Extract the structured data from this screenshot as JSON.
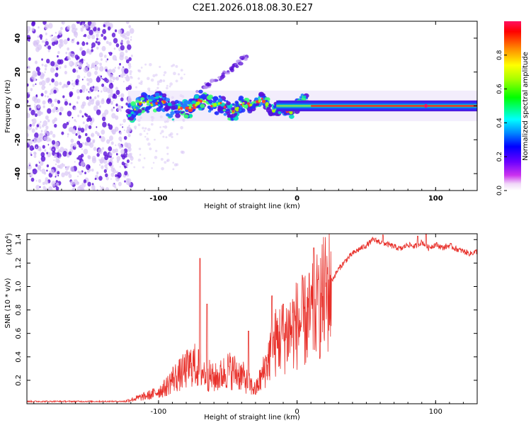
{
  "title": "C2E1.2026.018.08.30.E27",
  "colors": {
    "snr_line": "#e8302a",
    "spectrogram_dark": "#5a0fd8",
    "spectrogram_light": "#d9c6f5",
    "axis": "#000000"
  },
  "chart_data": [
    {
      "type": "heatmap",
      "name": "spectrogram",
      "xlabel": "Height of straight line (km)",
      "ylabel": "Frequency (Hz)",
      "xlim": [
        -195,
        130
      ],
      "ylim": [
        -50,
        50
      ],
      "xticks": [
        -100,
        0,
        100
      ],
      "yticks": [
        -40,
        -20,
        0,
        20,
        40
      ],
      "colorbar": {
        "label": "Normalized spectral amplitude",
        "range": [
          0,
          1
        ],
        "ticks": [
          "0.0",
          "0.2",
          "0.4",
          "0.6",
          "0.8"
        ],
        "tick_values": [
          0,
          0.2,
          0.4,
          0.6,
          0.8
        ]
      },
      "features": {
        "noise_region_x": [
          -195,
          -122
        ],
        "signal_band_center_hz": 0,
        "signal_band_halfwidth_hz": 2,
        "harmonic_branch": [
          [
            -75,
            8
          ],
          [
            -55,
            17
          ],
          [
            -35,
            30
          ]
        ],
        "wobble_region_x": [
          -122,
          -20
        ],
        "strong_band_x": [
          10,
          130
        ]
      }
    },
    {
      "type": "line",
      "name": "snr",
      "xlabel": "Height of straight line (km)",
      "ylabel": "SNR (10 * v/v)",
      "scale_label": "(x10",
      "scale_exponent": "4",
      "scale_suffix": ")",
      "xlim": [
        -195,
        130
      ],
      "ylim": [
        0,
        1.45
      ],
      "xticks": [
        -100,
        0,
        100
      ],
      "yticks": [
        0.2,
        0.4,
        0.6,
        0.8,
        1.0,
        1.2,
        1.4
      ],
      "ytick_labels": [
        "0.2",
        "0.4",
        "0.6",
        "0.8",
        "1.0",
        "1.2",
        "1.4"
      ],
      "envelope": {
        "x": [
          -195,
          -150,
          -125,
          -115,
          -105,
          -95,
          -90,
          -85,
          -80,
          -75,
          -70,
          -65,
          -60,
          -55,
          -50,
          -45,
          -40,
          -35,
          -30,
          -25,
          -20,
          -15,
          -10,
          -5,
          0,
          5,
          10,
          15,
          20,
          25,
          30,
          35,
          40,
          45,
          50,
          55,
          60,
          65,
          70,
          75,
          80,
          85,
          90,
          95,
          100,
          105,
          110,
          115,
          120,
          125,
          130
        ],
        "y": [
          0.02,
          0.02,
          0.02,
          0.05,
          0.08,
          0.14,
          0.22,
          0.25,
          0.3,
          0.35,
          0.3,
          0.26,
          0.22,
          0.25,
          0.3,
          0.28,
          0.25,
          0.18,
          0.12,
          0.25,
          0.42,
          0.55,
          0.6,
          0.65,
          0.7,
          0.72,
          0.76,
          0.85,
          0.95,
          1.05,
          1.15,
          1.22,
          1.28,
          1.32,
          1.35,
          1.4,
          1.38,
          1.36,
          1.34,
          1.32,
          1.36,
          1.34,
          1.38,
          1.33,
          1.36,
          1.33,
          1.35,
          1.32,
          1.3,
          1.28,
          1.3
        ]
      },
      "peaks": [
        [
          -70,
          1.24
        ],
        [
          -65,
          0.85
        ],
        [
          -35,
          0.62
        ],
        [
          -18,
          0.92
        ],
        [
          -10,
          0.85
        ],
        [
          12,
          1.33
        ],
        [
          15,
          1.06
        ],
        [
          93,
          1.45
        ],
        [
          87,
          1.43
        ],
        [
          62,
          1.44
        ]
      ]
    }
  ]
}
